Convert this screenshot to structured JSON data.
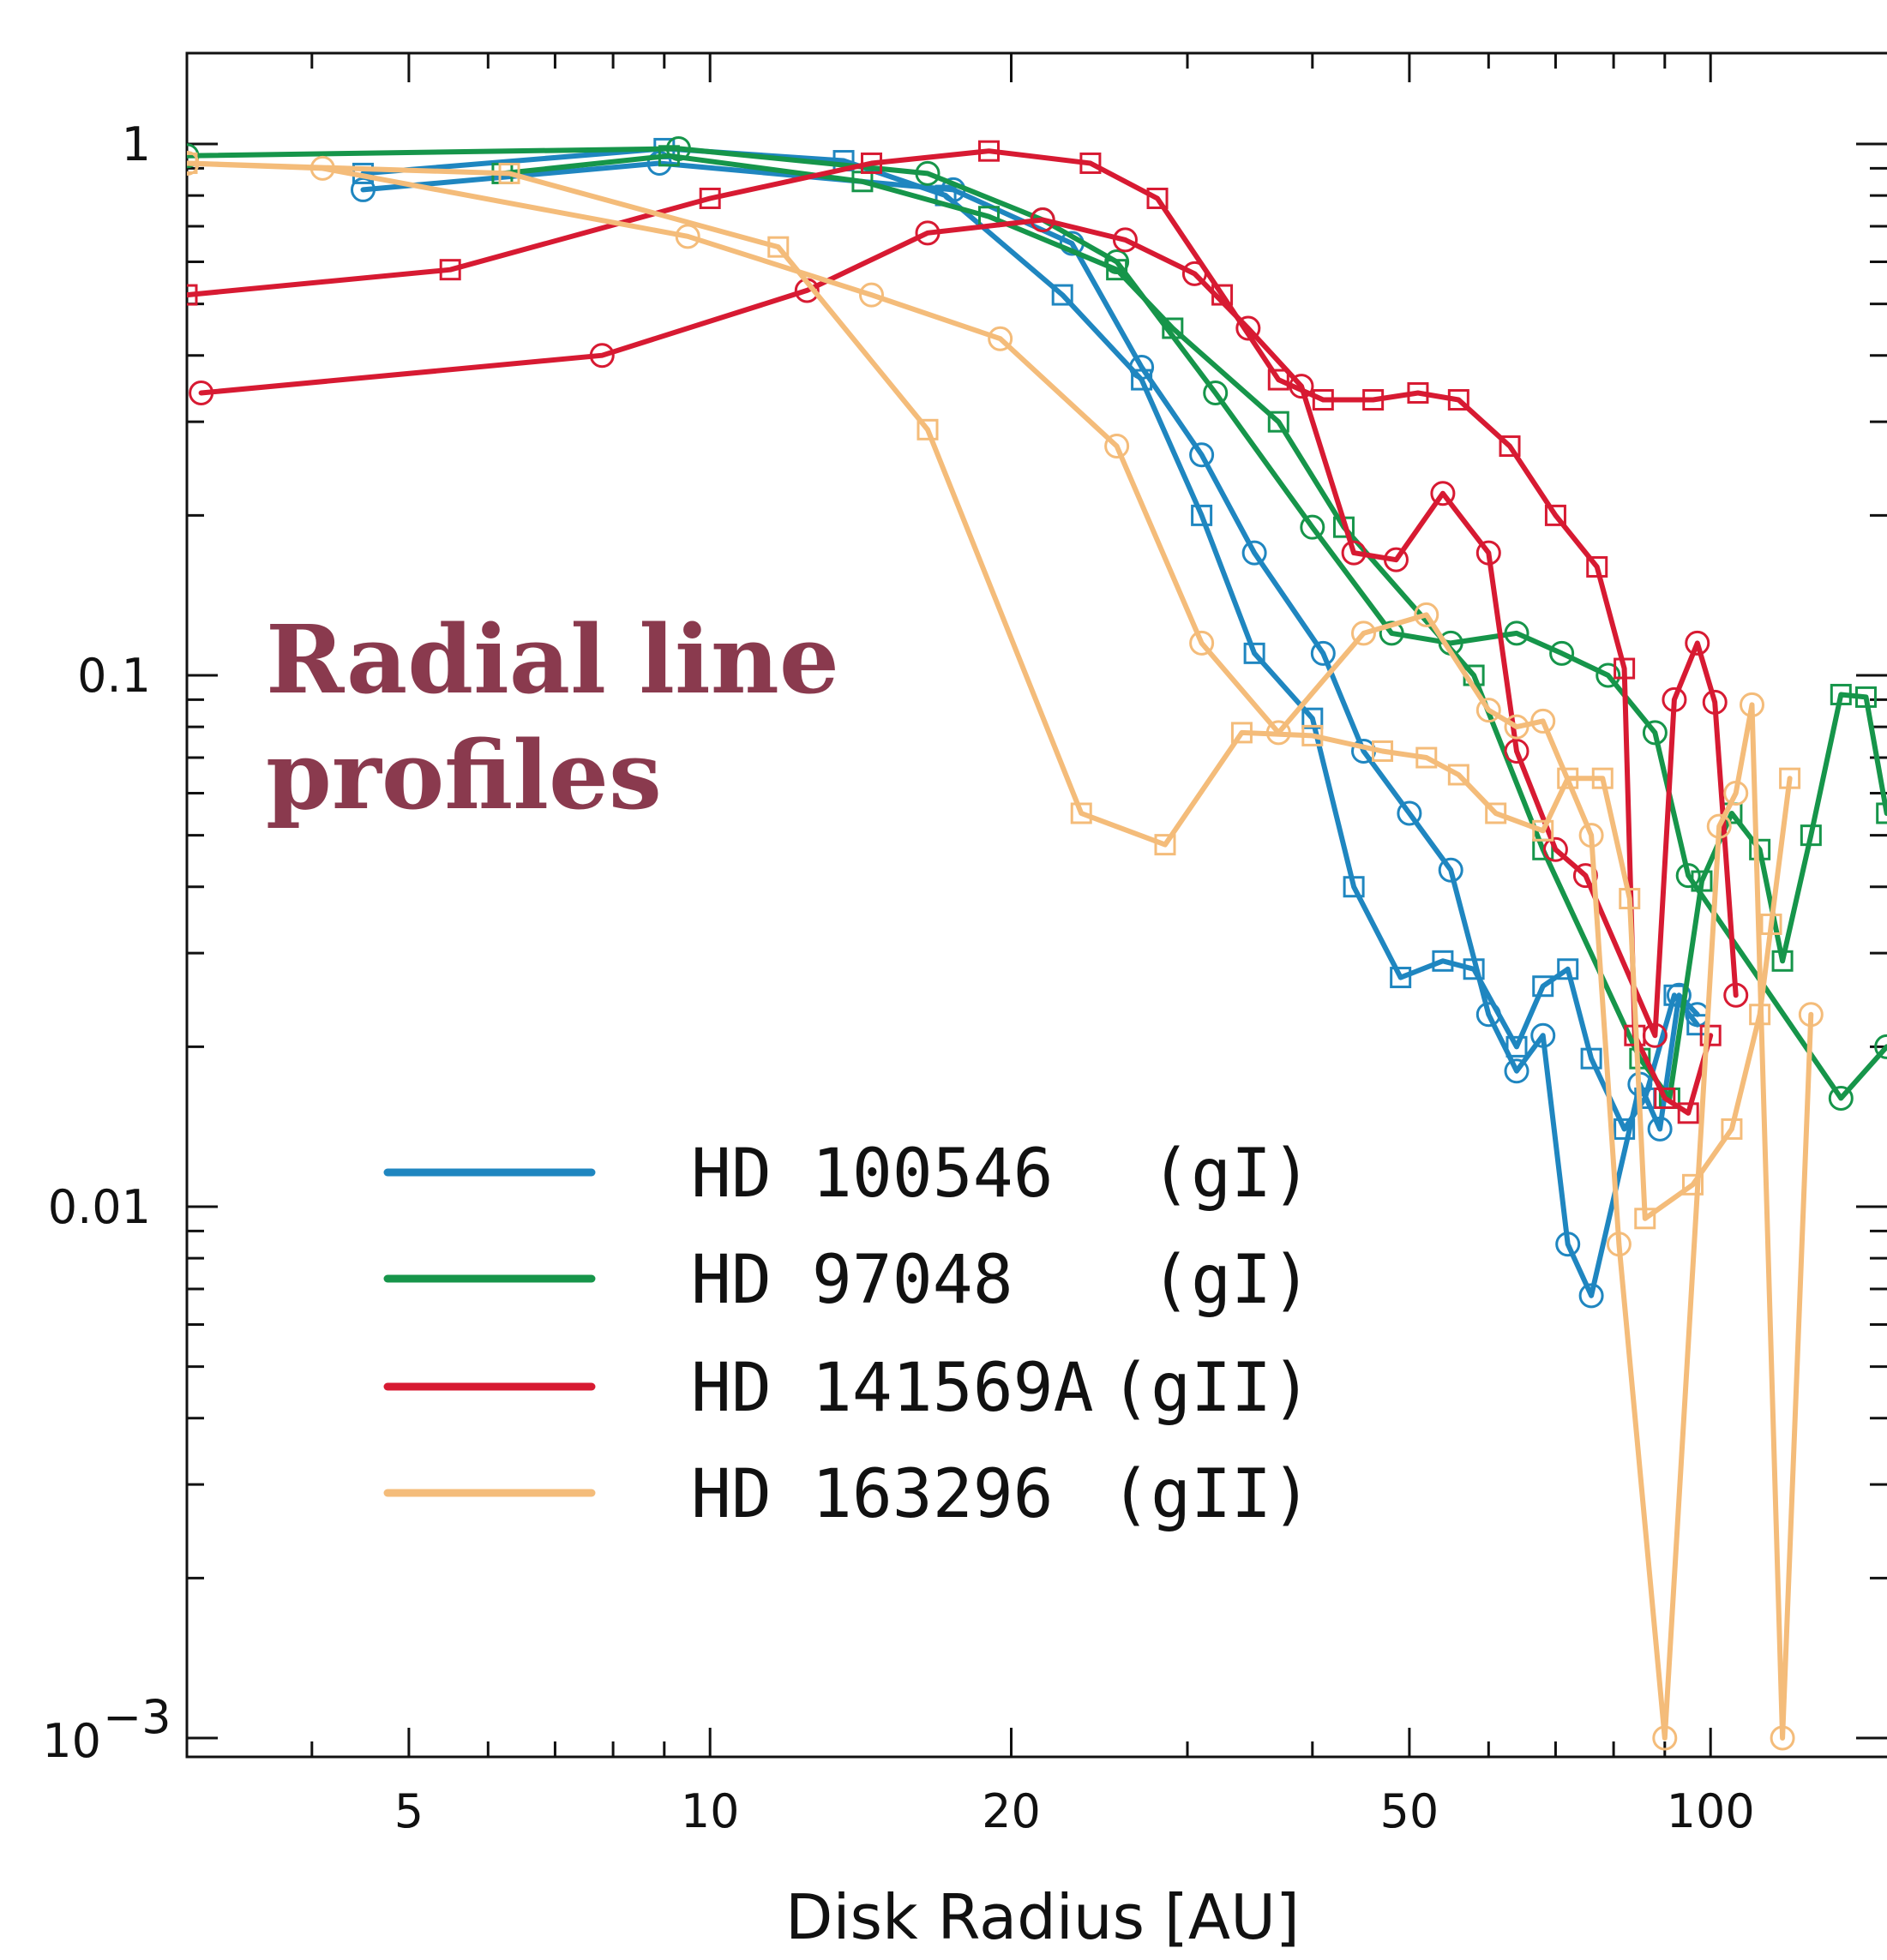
{
  "chart_data": {
    "type": "line",
    "xlabel": "Disk Radius [AU]",
    "ylabel": "",
    "x_scale": "log",
    "y_scale": "log",
    "xlim": [
      3,
      150
    ],
    "ylim": [
      0.001,
      1.8
    ],
    "x_ticks": [
      {
        "value": 5,
        "label": "5"
      },
      {
        "value": 10,
        "label": "10"
      },
      {
        "value": 20,
        "label": "20"
      },
      {
        "value": 50,
        "label": "50"
      },
      {
        "value": 100,
        "label": "100"
      }
    ],
    "y_ticks": [
      {
        "value": 1,
        "label": "1"
      },
      {
        "value": 0.1,
        "label": "0.1"
      },
      {
        "value": 0.01,
        "label": "0.01"
      }
    ],
    "y_bottom_label": {
      "base": "10",
      "exp": "−3"
    },
    "annotation": [
      "Radial line",
      "profiles"
    ],
    "legend_position": "lower-left",
    "series": [
      {
        "name": "HD 100546",
        "tag": "(gI)",
        "color": "#1f86c0",
        "lines": [
          {
            "marker": "circle",
            "points": [
              [
                4.5,
                0.82
              ],
              [
                8.9,
                0.92
              ],
              [
                17.5,
                0.82
              ],
              [
                23,
                0.65
              ],
              [
                27,
                0.38
              ],
              [
                31,
                0.26
              ],
              [
                35,
                0.17
              ],
              [
                41,
                0.11
              ],
              [
                45,
                0.072
              ],
              [
                50,
                0.055
              ],
              [
                55,
                0.043
              ],
              [
                60,
                0.023
              ],
              [
                64,
                0.018
              ],
              [
                68,
                0.021
              ],
              [
                72,
                0.0085
              ],
              [
                76,
                0.0068
              ],
              [
                85,
                0.017
              ],
              [
                89,
                0.014
              ],
              [
                93,
                0.025
              ],
              [
                97,
                0.023
              ]
            ]
          },
          {
            "marker": "square",
            "points": [
              [
                4.5,
                0.88
              ],
              [
                9,
                0.98
              ],
              [
                13.6,
                0.93
              ],
              [
                17.2,
                0.8
              ],
              [
                22.5,
                0.52
              ],
              [
                27,
                0.36
              ],
              [
                31,
                0.2
              ],
              [
                35,
                0.11
              ],
              [
                40,
                0.083
              ],
              [
                44,
                0.04
              ],
              [
                49,
                0.027
              ],
              [
                54,
                0.029
              ],
              [
                58,
                0.028
              ],
              [
                64,
                0.02
              ],
              [
                68,
                0.026
              ],
              [
                72,
                0.028
              ],
              [
                76,
                0.019
              ],
              [
                82,
                0.014
              ],
              [
                86,
                0.016
              ],
              [
                92,
                0.025
              ],
              [
                97,
                0.022
              ]
            ]
          }
        ]
      },
      {
        "name": "HD 97048",
        "tag": "(gI)",
        "color": "#16954a",
        "lines": [
          {
            "marker": "circle",
            "points": [
              [
                3,
                0.95
              ],
              [
                9.3,
                0.98
              ],
              [
                16.5,
                0.88
              ],
              [
                21.5,
                0.72
              ],
              [
                25.5,
                0.6
              ],
              [
                32,
                0.34
              ],
              [
                40,
                0.19
              ],
              [
                48,
                0.12
              ],
              [
                55,
                0.115
              ],
              [
                64,
                0.12
              ],
              [
                71,
                0.11
              ],
              [
                79,
                0.1
              ],
              [
                88,
                0.078
              ],
              [
                95,
                0.042
              ],
              [
                135,
                0.016
              ],
              [
                150,
                0.02
              ]
            ]
          },
          {
            "marker": "square",
            "points": [
              [
                6.2,
                0.88
              ],
              [
                9.1,
                0.95
              ],
              [
                14.2,
                0.85
              ],
              [
                19,
                0.73
              ],
              [
                25.5,
                0.58
              ],
              [
                29,
                0.45
              ],
              [
                37,
                0.3
              ],
              [
                43,
                0.19
              ],
              [
                58,
                0.1
              ],
              [
                68,
                0.047
              ],
              [
                85,
                0.019
              ],
              [
                91,
                0.016
              ],
              [
                98,
                0.041
              ],
              [
                105,
                0.055
              ],
              [
                112,
                0.047
              ],
              [
                118,
                0.029
              ],
              [
                126,
                0.05
              ],
              [
                135,
                0.092
              ],
              [
                143,
                0.091
              ],
              [
                150,
                0.055
              ]
            ]
          }
        ]
      },
      {
        "name": "HD 141569A",
        "tag": "(gII)",
        "color": "#d71a32",
        "lines": [
          {
            "marker": "circle",
            "points": [
              [
                3.1,
                0.34
              ],
              [
                7.8,
                0.4
              ],
              [
                12.5,
                0.53
              ],
              [
                16.5,
                0.68
              ],
              [
                21.5,
                0.72
              ],
              [
                26,
                0.66
              ],
              [
                30.5,
                0.57
              ],
              [
                34.5,
                0.45
              ],
              [
                39,
                0.35
              ],
              [
                44,
                0.17
              ],
              [
                48.5,
                0.165
              ],
              [
                54,
                0.22
              ],
              [
                60,
                0.17
              ],
              [
                64,
                0.072
              ],
              [
                70,
                0.047
              ],
              [
                75,
                0.042
              ],
              [
                88,
                0.021
              ],
              [
                92,
                0.09
              ],
              [
                97,
                0.115
              ],
              [
                101,
                0.089
              ],
              [
                106,
                0.025
              ]
            ]
          },
          {
            "marker": "square",
            "points": [
              [
                3,
                0.52
              ],
              [
                5.5,
                0.58
              ],
              [
                10,
                0.79
              ],
              [
                14.5,
                0.92
              ],
              [
                19,
                0.97
              ],
              [
                24,
                0.92
              ],
              [
                28,
                0.79
              ],
              [
                32.5,
                0.52
              ],
              [
                37,
                0.36
              ],
              [
                41,
                0.33
              ],
              [
                46,
                0.33
              ],
              [
                51,
                0.34
              ],
              [
                56,
                0.33
              ],
              [
                63,
                0.27
              ],
              [
                70,
                0.2
              ],
              [
                77,
                0.16
              ],
              [
                82,
                0.103
              ],
              [
                84,
                0.021
              ],
              [
                90,
                0.016
              ],
              [
                95,
                0.015
              ],
              [
                100,
                0.021
              ]
            ]
          }
        ]
      },
      {
        "name": "HD 163296",
        "tag": "(gII)",
        "color": "#f4bc7a",
        "lines": [
          {
            "marker": "circle",
            "points": [
              [
                3,
                0.92
              ],
              [
                4.1,
                0.9
              ],
              [
                9.5,
                0.67
              ],
              [
                14.5,
                0.52
              ],
              [
                19.5,
                0.43
              ],
              [
                25.5,
                0.27
              ],
              [
                31,
                0.115
              ],
              [
                37,
                0.078
              ],
              [
                45,
                0.12
              ],
              [
                52,
                0.13
              ],
              [
                60,
                0.086
              ],
              [
                64,
                0.08
              ],
              [
                68,
                0.082
              ],
              [
                76,
                0.05
              ],
              [
                81,
                0.0085
              ],
              [
                90,
                0.001
              ],
              [
                102,
                0.052
              ],
              [
                106,
                0.06
              ],
              [
                110,
                0.088
              ],
              [
                118,
                0.001
              ],
              [
                126,
                0.023
              ]
            ]
          },
          {
            "marker": "square",
            "points": [
              [
                3,
                0.92
              ],
              [
                6.3,
                0.88
              ],
              [
                11.7,
                0.64
              ],
              [
                16.5,
                0.29
              ],
              [
                23.5,
                0.055
              ],
              [
                28.5,
                0.048
              ],
              [
                34,
                0.078
              ],
              [
                40,
                0.077
              ],
              [
                47,
                0.072
              ],
              [
                52,
                0.07
              ],
              [
                56,
                0.065
              ],
              [
                61,
                0.055
              ],
              [
                68,
                0.051
              ],
              [
                72,
                0.064
              ],
              [
                78,
                0.064
              ],
              [
                83,
                0.038
              ],
              [
                86,
                0.0095
              ],
              [
                96,
                0.011
              ],
              [
                105,
                0.014
              ],
              [
                112,
                0.023
              ],
              [
                115,
                0.034
              ],
              [
                120,
                0.064
              ]
            ]
          }
        ]
      }
    ]
  }
}
